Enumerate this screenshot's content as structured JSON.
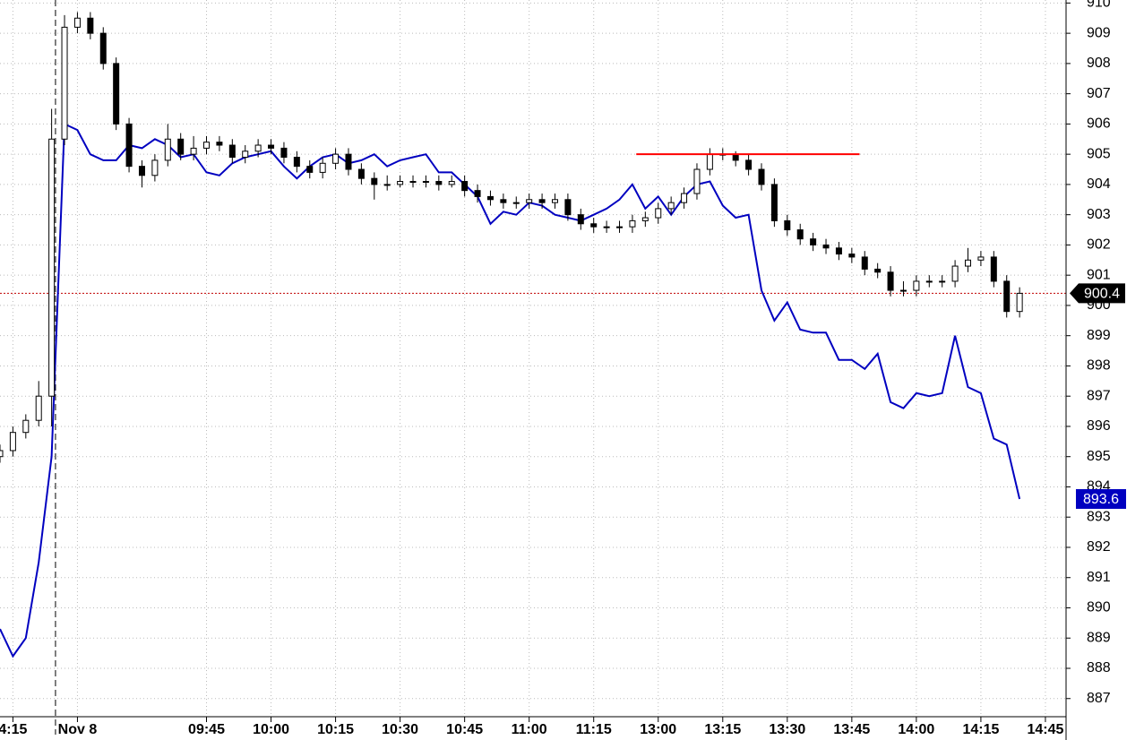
{
  "chart_data": {
    "type": "candlestick",
    "x": [
      -16,
      -15,
      -14,
      -13,
      -12,
      -11,
      -10,
      -9,
      -8,
      -7,
      -6,
      -5,
      -4,
      -3,
      -2,
      -1,
      0,
      1,
      2,
      3,
      4,
      5,
      6,
      7,
      8,
      9,
      10,
      11,
      12,
      13,
      14,
      15,
      16,
      17,
      18,
      19,
      20,
      21,
      22,
      23,
      24,
      25,
      26,
      27,
      28,
      29,
      30,
      31,
      32,
      33,
      34,
      35,
      36,
      37,
      38,
      39,
      40,
      41,
      42,
      43,
      44,
      45,
      46,
      47,
      48,
      49,
      50,
      51,
      52,
      53,
      54,
      55,
      56,
      57,
      58,
      59,
      60,
      61,
      62,
      63
    ],
    "candles": {
      "up_color": "#ffffff",
      "down_color": "#000000",
      "edge_color": "#000000",
      "open": [
        895.0,
        895.2,
        895.8,
        896.2,
        897.0,
        905.5,
        909.2,
        909.5,
        909.0,
        908.0,
        906.0,
        904.6,
        904.3,
        904.8,
        905.5,
        905.0,
        905.2,
        905.4,
        905.3,
        904.9,
        905.1,
        905.3,
        905.2,
        904.9,
        904.6,
        904.4,
        904.7,
        905.0,
        904.5,
        904.2,
        904.0,
        904.0,
        904.1,
        904.1,
        904.1,
        904.0,
        904.1,
        903.8,
        903.6,
        903.5,
        903.4,
        903.4,
        903.5,
        903.4,
        903.5,
        903.0,
        902.7,
        902.6,
        902.6,
        902.6,
        902.8,
        902.9,
        903.2,
        903.4,
        903.7,
        904.5,
        905.0,
        905.0,
        904.8,
        904.5,
        904.0,
        902.8,
        902.5,
        902.2,
        902.0,
        901.9,
        901.7,
        901.6,
        901.2,
        901.1,
        900.5,
        900.5,
        900.8,
        900.8,
        900.8,
        901.3,
        901.5,
        901.6,
        900.8,
        899.8
      ],
      "high": [
        895.4,
        896.0,
        896.4,
        897.5,
        906.5,
        909.6,
        909.7,
        909.7,
        909.2,
        908.2,
        906.2,
        904.8,
        905.0,
        906.0,
        905.7,
        905.6,
        905.6,
        905.6,
        905.5,
        905.3,
        905.5,
        905.5,
        905.4,
        905.1,
        904.8,
        904.9,
        905.2,
        905.2,
        904.7,
        904.4,
        904.3,
        904.3,
        904.3,
        904.3,
        904.3,
        904.3,
        904.3,
        904.0,
        903.8,
        903.7,
        903.6,
        903.7,
        903.7,
        903.7,
        903.7,
        903.2,
        902.9,
        902.8,
        902.8,
        903.0,
        903.1,
        903.4,
        903.6,
        903.9,
        904.7,
        905.2,
        905.2,
        905.1,
        905.0,
        904.7,
        904.2,
        903.0,
        902.7,
        902.4,
        902.2,
        902.1,
        901.9,
        901.8,
        901.4,
        901.3,
        900.8,
        901.0,
        901.0,
        901.0,
        901.5,
        901.9,
        901.8,
        901.8,
        901.0,
        900.6
      ],
      "low": [
        894.8,
        895.0,
        895.6,
        896.0,
        896.0,
        905.3,
        909.0,
        908.8,
        907.8,
        905.8,
        904.4,
        903.9,
        904.1,
        904.6,
        904.8,
        904.8,
        905.0,
        905.1,
        904.7,
        904.7,
        904.9,
        905.0,
        904.7,
        904.4,
        904.2,
        904.2,
        904.5,
        904.3,
        904.0,
        903.5,
        903.8,
        903.9,
        903.9,
        903.9,
        903.8,
        903.9,
        903.6,
        903.4,
        903.3,
        903.2,
        903.2,
        903.2,
        903.2,
        903.2,
        902.8,
        902.5,
        902.4,
        902.4,
        902.4,
        902.4,
        902.6,
        902.7,
        903.0,
        903.2,
        903.5,
        904.3,
        904.8,
        904.6,
        904.3,
        903.8,
        902.6,
        902.3,
        902.0,
        901.8,
        901.7,
        901.5,
        901.4,
        901.0,
        900.9,
        900.3,
        900.3,
        900.3,
        900.6,
        900.6,
        900.6,
        901.1,
        901.3,
        900.6,
        899.6,
        899.6
      ],
      "close": [
        895.2,
        895.8,
        896.2,
        897.0,
        905.5,
        909.2,
        909.5,
        909.0,
        908.0,
        906.0,
        904.6,
        904.3,
        904.8,
        905.5,
        905.0,
        905.2,
        905.4,
        905.3,
        904.9,
        905.1,
        905.3,
        905.2,
        904.9,
        904.6,
        904.4,
        904.7,
        905.0,
        904.5,
        904.2,
        904.0,
        904.0,
        904.1,
        904.1,
        904.1,
        904.0,
        904.1,
        903.8,
        903.6,
        903.5,
        903.4,
        903.4,
        903.5,
        903.4,
        903.5,
        903.0,
        902.7,
        902.6,
        902.6,
        902.6,
        902.8,
        902.9,
        903.2,
        903.4,
        903.7,
        904.5,
        905.0,
        905.0,
        904.8,
        904.5,
        904.0,
        902.8,
        902.5,
        902.2,
        902.0,
        901.9,
        901.7,
        901.6,
        901.2,
        901.1,
        900.5,
        900.5,
        900.8,
        900.8,
        900.8,
        901.3,
        901.5,
        901.6,
        900.8,
        899.8,
        900.4
      ]
    },
    "line": {
      "color": "#0000c0",
      "values": [
        889.3,
        888.4,
        889.0,
        891.5,
        895.0,
        906.0,
        905.8,
        905.0,
        904.8,
        904.8,
        905.3,
        905.2,
        905.5,
        905.3,
        904.9,
        905.0,
        904.4,
        904.3,
        904.7,
        904.9,
        905.0,
        905.1,
        904.6,
        904.2,
        904.6,
        904.9,
        905.0,
        904.7,
        904.8,
        905.0,
        904.6,
        904.8,
        904.9,
        905.0,
        904.4,
        904.4,
        904.0,
        903.6,
        902.7,
        903.1,
        903.0,
        903.4,
        903.3,
        903.0,
        902.9,
        902.8,
        903.0,
        903.2,
        903.5,
        904.0,
        903.2,
        903.6,
        903.0,
        903.6,
        904.0,
        904.1,
        903.3,
        902.9,
        903.0,
        900.5,
        899.5,
        900.1,
        899.2,
        899.1,
        899.1,
        898.2,
        898.2,
        897.9,
        898.4,
        896.8,
        896.6,
        897.1,
        897.0,
        897.1,
        899.0,
        897.3,
        897.1,
        895.6,
        895.4,
        893.6
      ]
    },
    "last_price_line": {
      "color": "#c00000"
    },
    "hlines": [
      {
        "y": 905,
        "x": [
          33.3,
          50.6
        ],
        "color": "#ff0000"
      }
    ],
    "vlines": [
      -11.7
    ],
    "xlim": [
      -16,
      66.6
    ],
    "xticks": [
      {
        "value": -15,
        "label": "4:15"
      },
      {
        "value": -10,
        "label": "Nov 8"
      },
      {
        "value": 0,
        "label": "09:45"
      },
      {
        "value": 5,
        "label": "10:00"
      },
      {
        "value": 10,
        "label": "10:15"
      },
      {
        "value": 15,
        "label": "10:30"
      },
      {
        "value": 20,
        "label": "10:45"
      },
      {
        "value": 25,
        "label": "11:00"
      },
      {
        "value": 30,
        "label": "11:15"
      },
      {
        "value": 35,
        "label": "13:00"
      },
      {
        "value": 40,
        "label": "13:15"
      },
      {
        "value": 45,
        "label": "13:30"
      },
      {
        "value": 50,
        "label": "13:45"
      },
      {
        "value": 55,
        "label": "14:00"
      },
      {
        "value": 60,
        "label": "14:15"
      },
      {
        "value": 65,
        "label": "14:45"
      }
    ],
    "ylim": [
      886.4,
      910.1
    ],
    "yticks": [
      887,
      888,
      889,
      890,
      891,
      892,
      893,
      894,
      895,
      896,
      897,
      898,
      899,
      900,
      901,
      902,
      903,
      904,
      905,
      906,
      907,
      908,
      909,
      910
    ],
    "grid": true
  }
}
